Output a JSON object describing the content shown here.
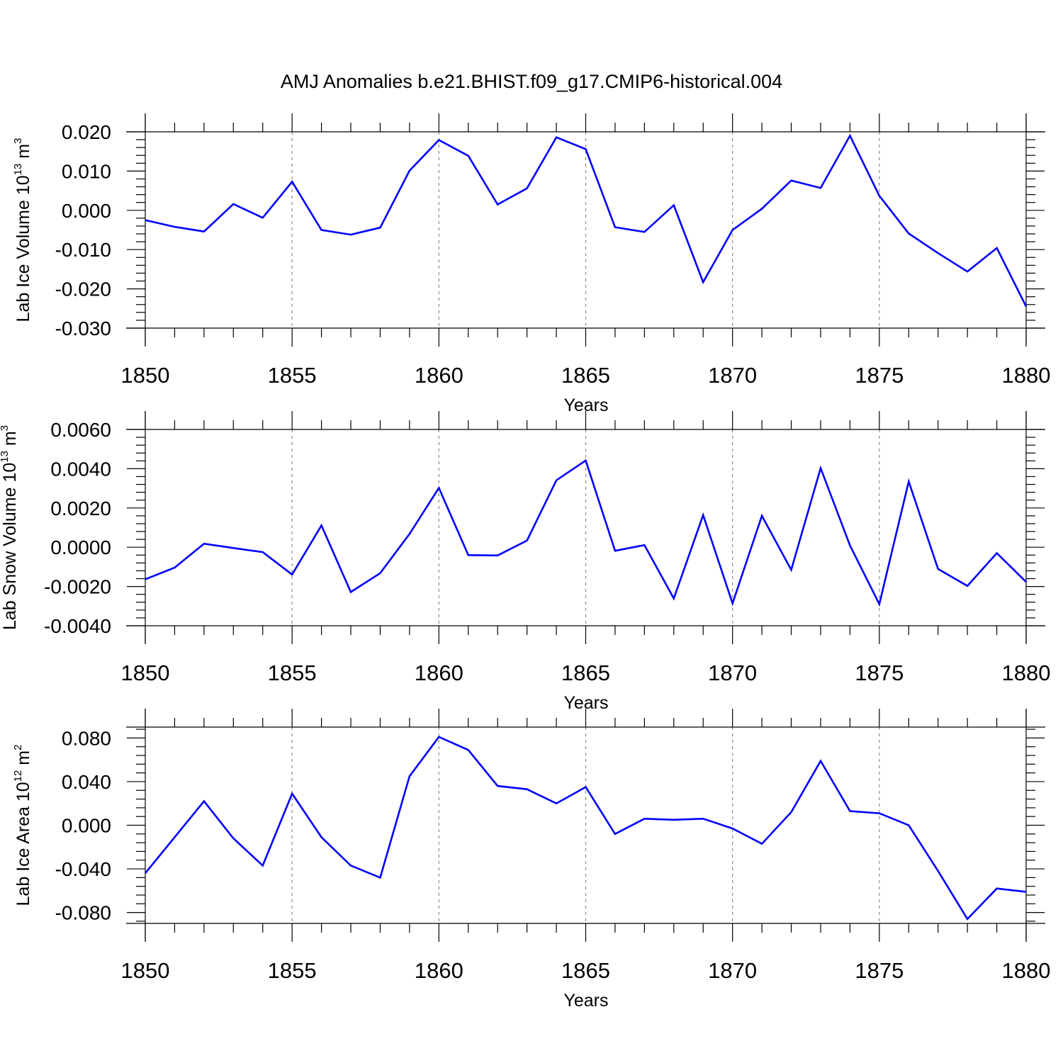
{
  "title": "AMJ Anomalies b.e21.BHIST.f09_g17.CMIP6-historical.004",
  "line_color": "#0000ff",
  "chart_data": [
    {
      "type": "line",
      "xlabel": "Years",
      "ylabel_main": "Lab Ice Volume 10",
      "ylabel_exp": "13",
      "ylabel_unit": " m",
      "ylabel_unit_exp": "3",
      "xlim": [
        1850,
        1880
      ],
      "ylim": [
        -0.03,
        0.02
      ],
      "xticks": [
        1850,
        1855,
        1860,
        1865,
        1870,
        1875,
        1880
      ],
      "yticks": [
        -0.03,
        -0.02,
        -0.01,
        0.0,
        0.01,
        0.02
      ],
      "ytick_labels": [
        "-0.030",
        "-0.020",
        "-0.010",
        "0.000",
        "0.010",
        "0.020"
      ],
      "x": [
        1850,
        1851,
        1852,
        1853,
        1854,
        1855,
        1856,
        1857,
        1858,
        1859,
        1860,
        1861,
        1862,
        1863,
        1864,
        1865,
        1866,
        1867,
        1868,
        1869,
        1870,
        1871,
        1872,
        1873,
        1874,
        1875,
        1876,
        1877,
        1878,
        1879,
        1880
      ],
      "values": [
        -0.0025,
        -0.0042,
        -0.0054,
        0.0016,
        -0.0019,
        0.0073,
        -0.005,
        -0.0062,
        -0.0044,
        0.0101,
        0.0179,
        0.0139,
        0.0015,
        0.0056,
        0.0186,
        0.0156,
        -0.0043,
        -0.0055,
        0.0013,
        -0.0183,
        -0.005,
        0.0004,
        0.0076,
        0.0057,
        0.019,
        0.0037,
        -0.0059,
        -0.0109,
        -0.0156,
        -0.0096,
        -0.0245
      ]
    },
    {
      "type": "line",
      "xlabel": "Years",
      "ylabel_main": "Lab Snow Volume 10",
      "ylabel_exp": "13",
      "ylabel_unit": " m",
      "ylabel_unit_exp": "3",
      "xlim": [
        1850,
        1880
      ],
      "ylim": [
        -0.004,
        0.006
      ],
      "xticks": [
        1850,
        1855,
        1860,
        1865,
        1870,
        1875,
        1880
      ],
      "yticks": [
        -0.004,
        -0.002,
        0.0,
        0.002,
        0.004,
        0.006
      ],
      "ytick_labels": [
        "-0.0040",
        "-0.0020",
        "0.0000",
        "0.0020",
        "0.0040",
        "0.0060"
      ],
      "x": [
        1850,
        1851,
        1852,
        1853,
        1854,
        1855,
        1856,
        1857,
        1858,
        1859,
        1860,
        1861,
        1862,
        1863,
        1864,
        1865,
        1866,
        1867,
        1868,
        1869,
        1870,
        1871,
        1872,
        1873,
        1874,
        1875,
        1876,
        1877,
        1878,
        1879,
        1880
      ],
      "values": [
        -0.00163,
        -0.00104,
        0.00018,
        -4e-05,
        -0.00025,
        -0.00139,
        0.00111,
        -0.00228,
        -0.00132,
        0.00068,
        0.00302,
        -0.0004,
        -0.00042,
        0.00034,
        0.00341,
        0.00442,
        -0.00018,
        0.00011,
        -0.00261,
        0.00164,
        -0.00286,
        0.0016,
        -0.00115,
        0.00403,
        9e-05,
        -0.0029,
        0.00335,
        -0.00111,
        -0.00197,
        -0.0003,
        -0.00177
      ]
    },
    {
      "type": "line",
      "xlabel": "Years",
      "ylabel_main": "Lab Ice Area 10",
      "ylabel_exp": "12",
      "ylabel_unit": " m",
      "ylabel_unit_exp": "2",
      "xlim": [
        1850,
        1880
      ],
      "ylim": [
        -0.09,
        0.09
      ],
      "xticks": [
        1850,
        1855,
        1860,
        1865,
        1870,
        1875,
        1880
      ],
      "yticks": [
        -0.08,
        -0.04,
        0.0,
        0.04,
        0.08
      ],
      "ytick_labels": [
        "-0.080",
        "-0.040",
        "0.000",
        "0.040",
        "0.080"
      ],
      "x": [
        1850,
        1851,
        1852,
        1853,
        1854,
        1855,
        1856,
        1857,
        1858,
        1859,
        1860,
        1861,
        1862,
        1863,
        1864,
        1865,
        1866,
        1867,
        1868,
        1869,
        1870,
        1871,
        1872,
        1873,
        1874,
        1875,
        1876,
        1877,
        1878,
        1879,
        1880
      ],
      "values": [
        -0.044,
        -0.011,
        0.022,
        -0.012,
        -0.037,
        0.029,
        -0.011,
        -0.037,
        -0.048,
        0.045,
        0.081,
        0.069,
        0.036,
        0.033,
        0.02,
        0.035,
        -0.008,
        0.006,
        0.005,
        0.006,
        -0.003,
        -0.017,
        0.012,
        0.059,
        0.013,
        0.011,
        0.0,
        -0.042,
        -0.086,
        -0.058,
        -0.061
      ]
    }
  ]
}
